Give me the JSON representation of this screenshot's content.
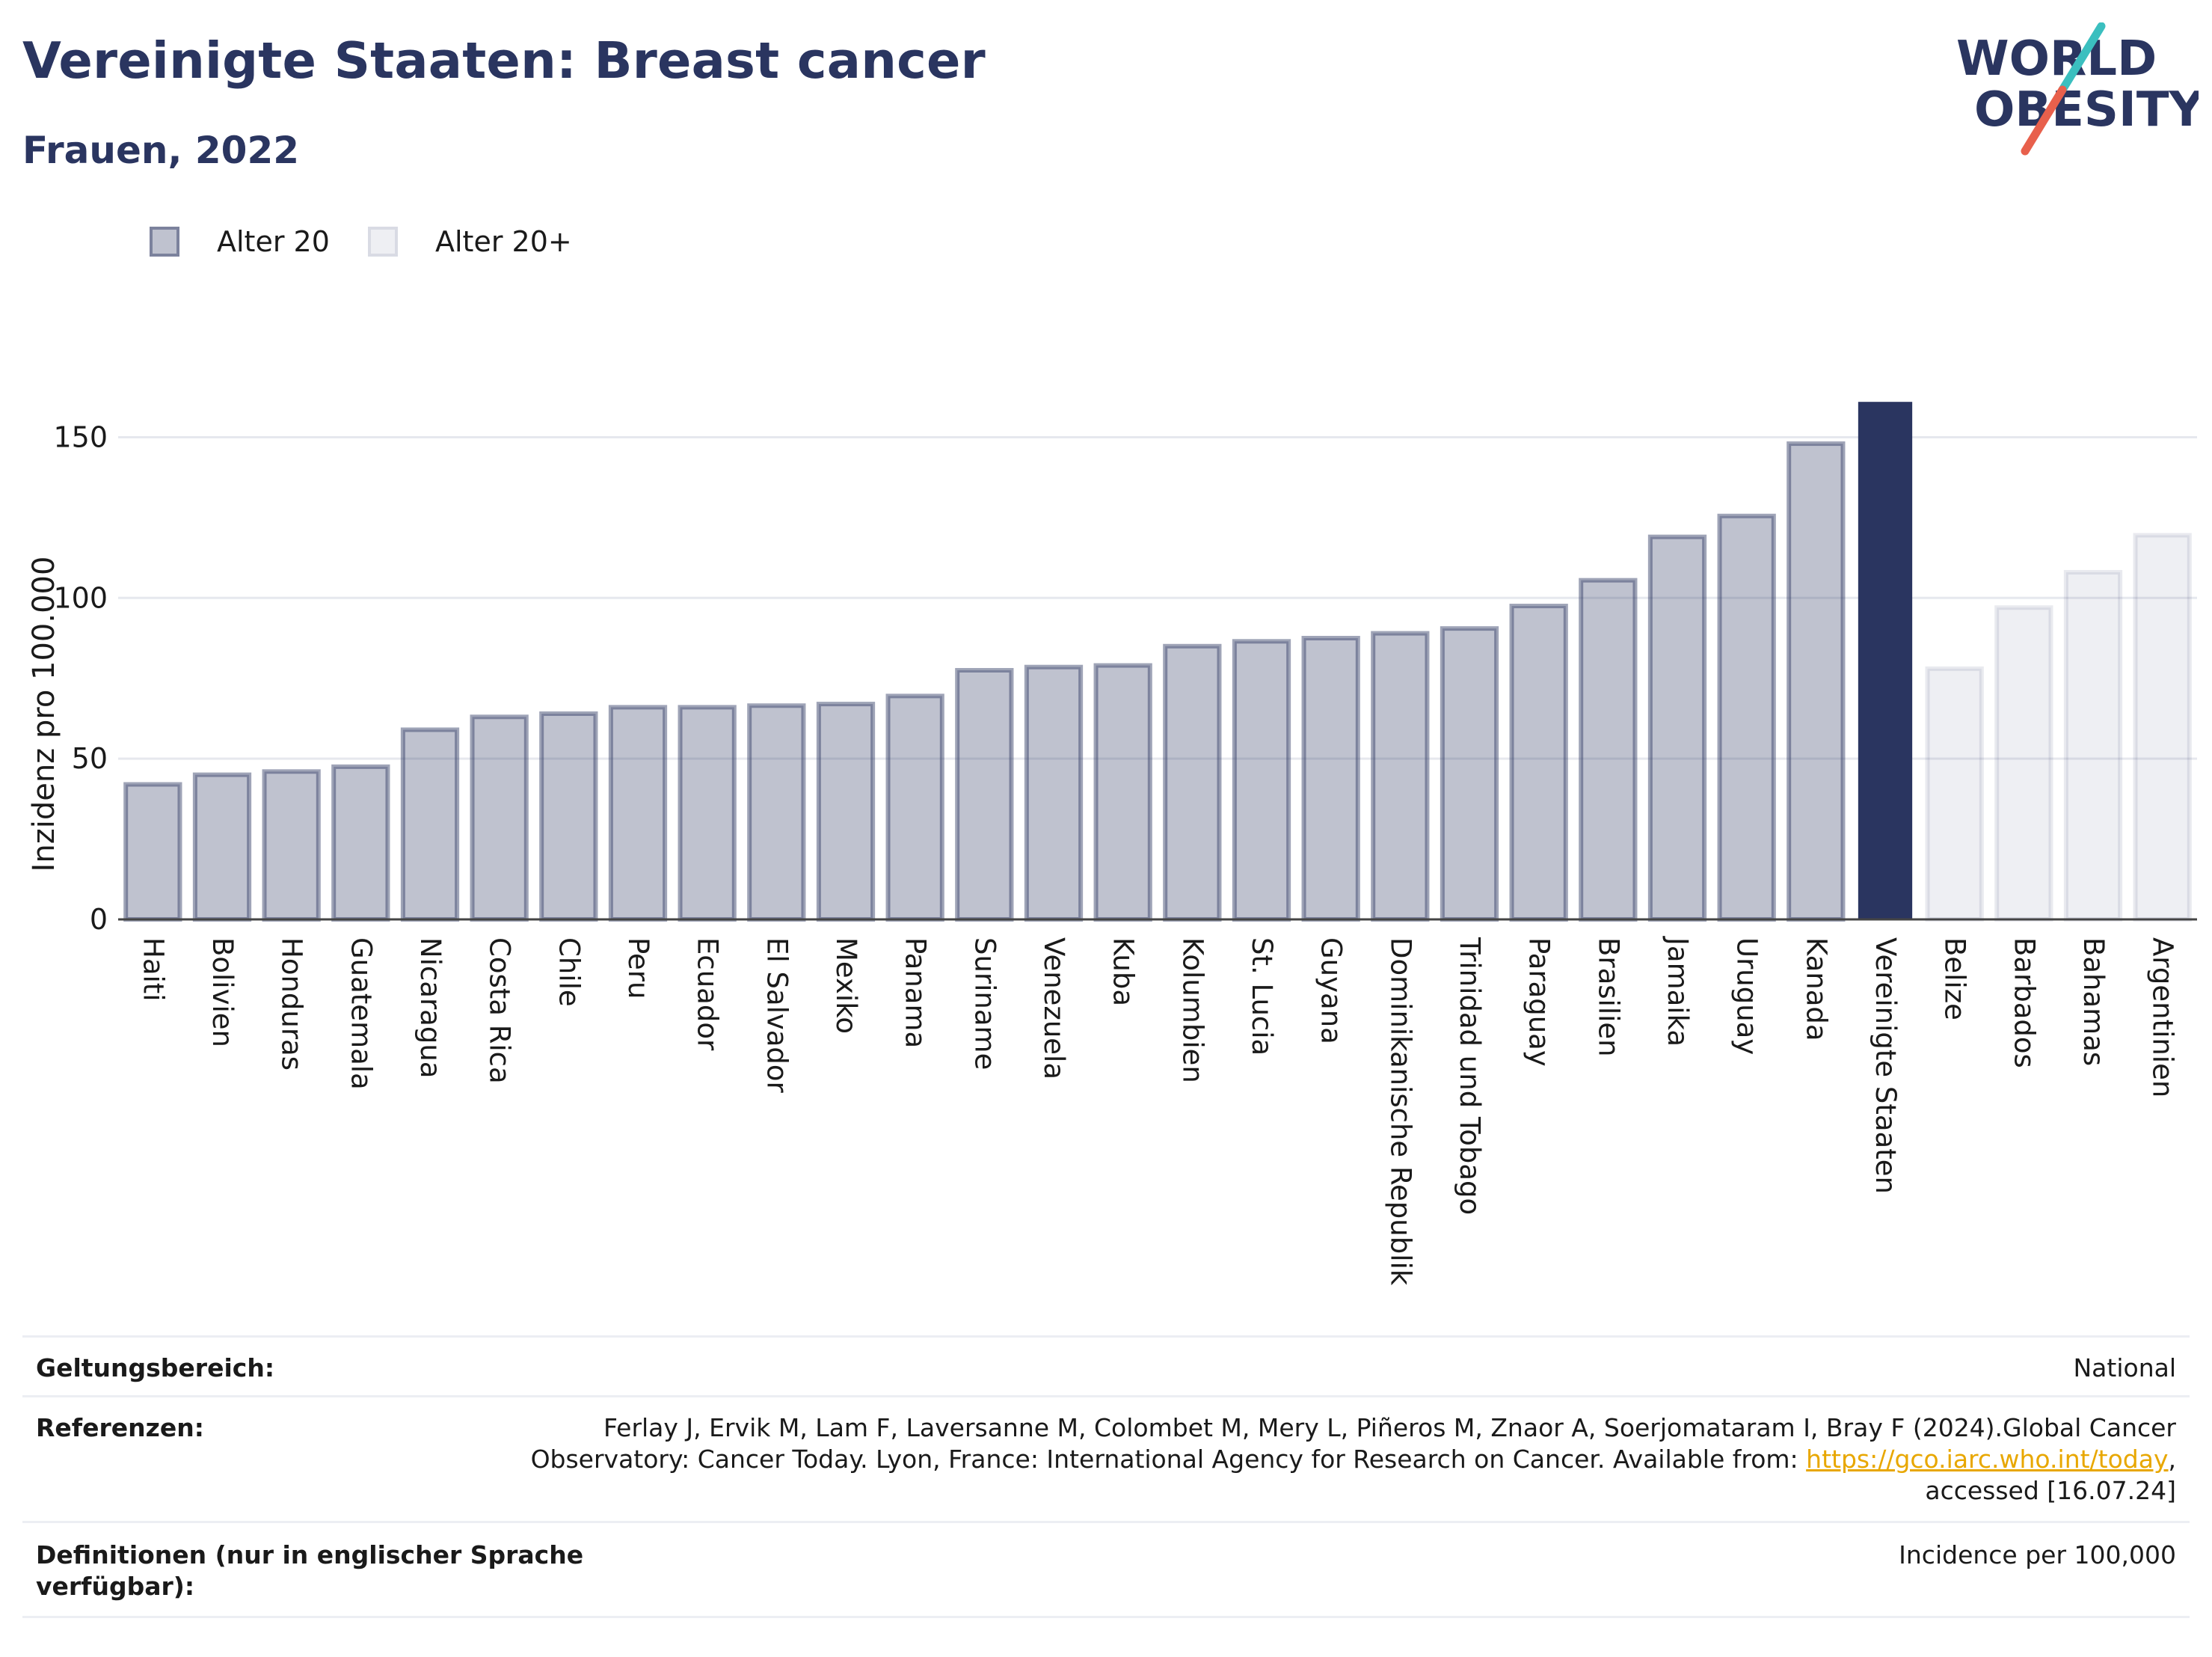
{
  "header": {
    "title": "Vereinigte Staaten: Breast cancer",
    "subtitle": "Frauen, 2022",
    "logo_line1": "WORLD",
    "logo_line2": "OBESITY"
  },
  "legend": [
    {
      "label": "Alter 20",
      "color": "#2a3560",
      "opacity": 0.3
    },
    {
      "label": "Alter 20+",
      "color": "#2a3560",
      "opacity": 0.08
    }
  ],
  "colors": {
    "brand": "#2a3560",
    "highlight": "#2a3560",
    "logo_teal": "#3bbfbf",
    "logo_red": "#e8604c",
    "link": "#e8a700"
  },
  "chart_data": {
    "type": "bar",
    "ylabel": "Inzidenz pro 100.000",
    "ylim": [
      0,
      165
    ],
    "yticks": [
      0,
      50,
      100,
      150
    ],
    "grid": true,
    "legend_placement": "top-left",
    "categories": [
      "Haiti",
      "Bolivien",
      "Honduras",
      "Guatemala",
      "Nicaragua",
      "Costa Rica",
      "Chile",
      "Peru",
      "Ecuador",
      "El Salvador",
      "Mexiko",
      "Panama",
      "Suriname",
      "Venezuela",
      "Kuba",
      "Kolumbien",
      "St. Lucia",
      "Guyana",
      "Dominikanische Republik",
      "Trinidad und Tobago",
      "Paraguay",
      "Brasilien",
      "Jamaika",
      "Uruguay",
      "Kanada",
      "Vereinigte Staaten",
      "Belize",
      "Barbados",
      "Bahamas",
      "Argentinien"
    ],
    "values": [
      42,
      45,
      46,
      47.5,
      59,
      63,
      64,
      66,
      66,
      66.5,
      67,
      69.5,
      77.5,
      78.5,
      79,
      85,
      86.5,
      87.5,
      89,
      90.5,
      97.5,
      105.5,
      119,
      125.5,
      148,
      161,
      78,
      97,
      108,
      119.5
    ],
    "series_group": [
      "Alter 20",
      "Alter 20",
      "Alter 20",
      "Alter 20",
      "Alter 20",
      "Alter 20",
      "Alter 20",
      "Alter 20",
      "Alter 20",
      "Alter 20",
      "Alter 20",
      "Alter 20",
      "Alter 20",
      "Alter 20",
      "Alter 20",
      "Alter 20",
      "Alter 20",
      "Alter 20",
      "Alter 20",
      "Alter 20",
      "Alter 20",
      "Alter 20",
      "Alter 20",
      "Alter 20",
      "Alter 20",
      "highlight",
      "Alter 20+",
      "Alter 20+",
      "Alter 20+",
      "Alter 20+"
    ]
  },
  "meta": {
    "scope_label": "Geltungsbereich:",
    "scope_value": "National",
    "refs_label": "Referenzen:",
    "refs_line1": "Ferlay J, Ervik M, Lam F, Laversanne M, Colombet M, Mery L, Piñeros M, Znaor A, Soerjomataram I, Bray F (2024).Global Cancer",
    "refs_line2_pre": "Observatory: Cancer Today. Lyon, France: International Agency for Research on Cancer. Available from: ",
    "refs_link": "https://gco.iarc.who.int/today",
    "refs_line2_post": ",",
    "refs_line3": "accessed [16.07.24]",
    "defs_label_line1": "Definitionen (nur in englischer Sprache",
    "defs_label_line2": "verfügbar):",
    "defs_value": "Incidence per 100,000"
  }
}
